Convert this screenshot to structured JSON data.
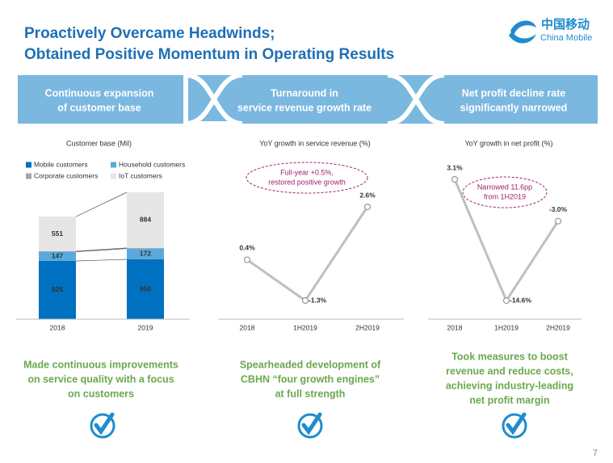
{
  "header": {
    "title": [
      "Proactively Overcame Headwinds;",
      "Obtained Positive Momentum in Operating Results"
    ],
    "logo_cn": "中国移动",
    "logo_en": "China Mobile"
  },
  "banners": [
    [
      "Continuous expansion",
      "of customer base"
    ],
    [
      "Turnaround in",
      "service revenue growth rate"
    ],
    [
      "Net profit decline rate",
      "significantly narrowed"
    ]
  ],
  "chart_data": [
    {
      "type": "stacked_bar",
      "title": "Customer base (Mil)",
      "categories": [
        "2018",
        "2019"
      ],
      "series": [
        {
          "name": "Mobile customers",
          "color": "#0070c0",
          "values": [
            925,
            950
          ]
        },
        {
          "name": "Household customers",
          "color": "#5aa9dc",
          "values": [
            147,
            172
          ]
        },
        {
          "name": "Corporate customers",
          "color": "#a6a6a6",
          "values": [
            7.18,
            10.28
          ]
        },
        {
          "name": "IoT customers",
          "color": "#e6e6e6",
          "values": [
            551,
            884
          ]
        }
      ]
    },
    {
      "type": "line",
      "title": "YoY growth in service revenue  (%)",
      "categories": [
        "2018",
        "1H2019",
        "2H2019"
      ],
      "values": [
        0.4,
        -1.3,
        2.6
      ],
      "value_labels": [
        "0.4%",
        "-1.3%",
        "2.6%"
      ],
      "color": "#bfbfbf",
      "annotation": [
        "Full-year +0.5%,",
        "restored positive growth"
      ]
    },
    {
      "type": "line",
      "title": "YoY growth in net profit (%)",
      "categories": [
        "2018",
        "1H2019",
        "2H2019"
      ],
      "values": [
        3.1,
        -14.6,
        -3.0
      ],
      "value_labels": [
        "3.1%",
        "-14.6%",
        "-3.0%"
      ],
      "color": "#bfbfbf",
      "annotation": [
        "Narrowed 11.6pp",
        "from 1H2019"
      ]
    }
  ],
  "notes": [
    [
      "Made continuous improvements",
      "on service quality with a  focus",
      "on customers"
    ],
    [
      "Spearheaded development of",
      "CBHN “four growth engines”",
      "at full strength"
    ],
    [
      "Took measures to boost",
      "revenue and reduce costs,",
      "achieving industry-leading",
      "net profit margin"
    ]
  ],
  "page_number": 7
}
